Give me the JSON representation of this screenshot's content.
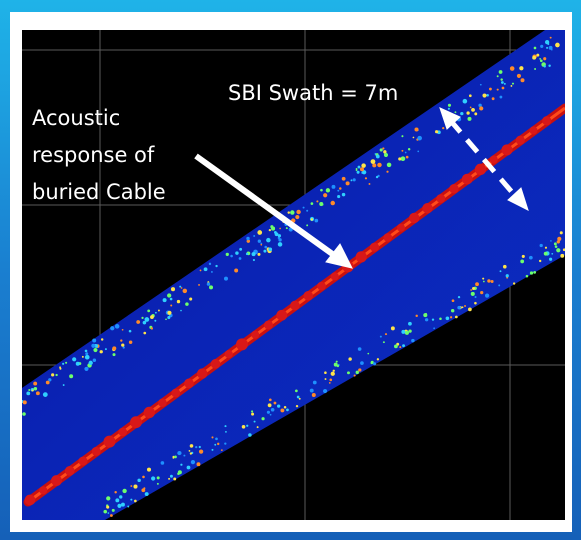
{
  "image": {
    "swath_label": "SBI Swath = 7m",
    "cable_label_lines": [
      "Acoustic",
      "response of",
      "buried Cable"
    ]
  }
}
